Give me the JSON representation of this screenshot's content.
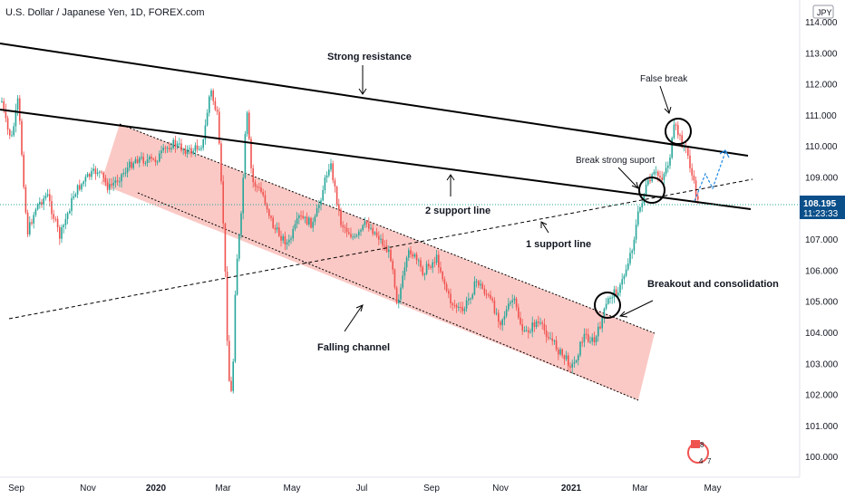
{
  "window": {
    "title": "U.S. Dollar / Japanese Yen, 1D, FOREX.com",
    "currency_badge": "JPY",
    "logo_icon": "tradingview-logo-icon"
  },
  "price_tag": {
    "price": "108.195",
    "countdown": "11:23:33",
    "color": "#0b4f8a"
  },
  "colors": {
    "up_candle": "#26a69a",
    "down_candle": "#ef5350",
    "channel_fill": "#f8b4b0",
    "line": "#000000"
  },
  "chart_data": {
    "type": "candlestick",
    "title": "U.S. Dollar / Japanese Yen, 1D, FOREX.com",
    "ylim": [
      99.5,
      114.6
    ],
    "y_ticks": [
      "114.000",
      "113.000",
      "112.000",
      "111.000",
      "110.000",
      "109.000",
      "108.000",
      "107.000",
      "106.000",
      "105.000",
      "104.000",
      "103.000",
      "102.000",
      "101.000",
      "100.000"
    ],
    "x_ticks": [
      "Sep",
      "Nov",
      "2020",
      "Mar",
      "May",
      "Jul",
      "Sep",
      "Nov",
      "2021",
      "Mar",
      "May"
    ],
    "approx_closes": [
      {
        "date": "Sep 2019",
        "value": 106.9
      },
      {
        "date": "Oct 2019",
        "value": 108.2
      },
      {
        "date": "Nov 2019",
        "value": 108.7
      },
      {
        "date": "Dec 2019",
        "value": 109.5
      },
      {
        "date": "Jan 2020",
        "value": 109.6
      },
      {
        "date": "Feb 2020",
        "value": 110.4
      },
      {
        "date": "Mar 2020 high",
        "value": 112.2
      },
      {
        "date": "Mar 2020 low",
        "value": 101.2
      },
      {
        "date": "Apr 2020",
        "value": 107.2
      },
      {
        "date": "May 2020",
        "value": 107.6
      },
      {
        "date": "Jun 2020",
        "value": 107.8
      },
      {
        "date": "Jul 2020",
        "value": 105.9
      },
      {
        "date": "Aug 2020",
        "value": 106.1
      },
      {
        "date": "Sep 2020",
        "value": 105.6
      },
      {
        "date": "Oct 2020",
        "value": 104.7
      },
      {
        "date": "Nov 2020",
        "value": 104.4
      },
      {
        "date": "Dec 2020",
        "value": 103.2
      },
      {
        "date": "Jan 2021",
        "value": 104.0
      },
      {
        "date": "Feb 2021",
        "value": 105.5
      },
      {
        "date": "Mar 2021",
        "value": 109.0
      },
      {
        "date": "Late Mar 2021",
        "value": 110.8
      },
      {
        "date": "Apr 2021",
        "value": 108.195
      }
    ],
    "current_price": 108.195,
    "grid": false
  },
  "annotations": {
    "strong_resistance": "Strong resistance",
    "support_2": "2 support line",
    "support_1": "1 support line",
    "falling_channel": "Falling channel",
    "false_break": "False break",
    "break_strong_support": "Break strong suport",
    "breakout": "Breakout and consolidation"
  }
}
